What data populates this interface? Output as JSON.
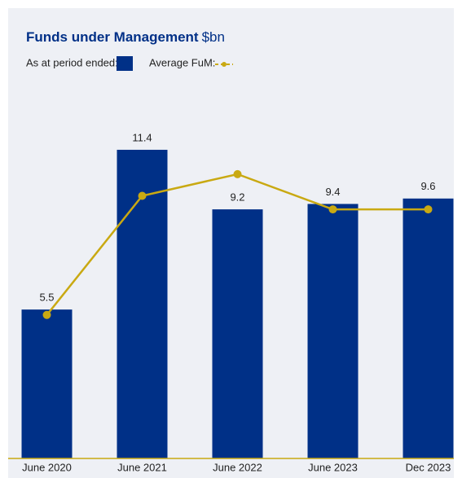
{
  "chart_data": {
    "type": "bar_line",
    "title": "Funds under Management",
    "unit": "$bn",
    "legend_bar_label": "As at period ended:",
    "legend_line_label": "Average FuM:",
    "categories": [
      "June 2020",
      "June 2021",
      "June 2022",
      "June 2023",
      "Dec 2023"
    ],
    "series": [
      {
        "name": "As at period ended",
        "type": "bar",
        "color": "#003087",
        "values": [
          5.5,
          11.4,
          9.2,
          9.4,
          9.6
        ]
      },
      {
        "name": "Average FuM",
        "type": "line",
        "color": "#c9a912",
        "values": [
          5.3,
          9.7,
          10.5,
          9.2,
          9.2
        ]
      }
    ],
    "ylim": [
      0,
      12
    ]
  }
}
